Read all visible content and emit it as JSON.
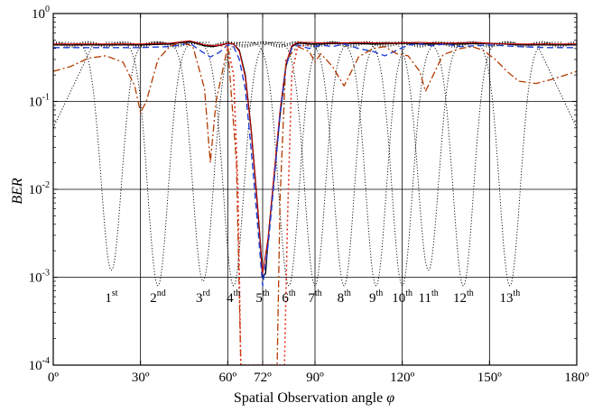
{
  "chart_data": {
    "type": "line",
    "title": "",
    "xlabel": "Spatial Observation angle",
    "xlabel_symbol": "φ",
    "ylabel": "BER",
    "x_unit": "degrees",
    "xlim": [
      0,
      180
    ],
    "ylim": [
      0.0001,
      1
    ],
    "y_scale": "log",
    "x_ticks": [
      {
        "value": 0,
        "label": "0º"
      },
      {
        "value": 30,
        "label": "30º"
      },
      {
        "value": 60,
        "label": "60º"
      },
      {
        "value": 72,
        "label": "72º"
      },
      {
        "value": 90,
        "label": "90º"
      },
      {
        "value": 120,
        "label": "120º"
      },
      {
        "value": 150,
        "label": "150º"
      },
      {
        "value": 180,
        "label": "180º"
      }
    ],
    "y_ticks": [
      {
        "value": 0.0001,
        "base": "10",
        "exp": "-4"
      },
      {
        "value": 0.001,
        "base": "10",
        "exp": "-3"
      },
      {
        "value": 0.01,
        "base": "10",
        "exp": "-2"
      },
      {
        "value": 0.1,
        "base": "10",
        "exp": "-1"
      },
      {
        "value": 1,
        "base": "10",
        "exp": "0"
      }
    ],
    "horizontal_grid": [
      0.001,
      0.01,
      0.1
    ],
    "vertical_grid": [
      30,
      60,
      72,
      90,
      120,
      150
    ],
    "grid": true,
    "legend": "none",
    "beam_labels": [
      {
        "num": "1",
        "sup": "st",
        "x": 20
      },
      {
        "num": "2",
        "sup": "nd",
        "x": 36
      },
      {
        "num": "3",
        "sup": "rd",
        "x": 51.5
      },
      {
        "num": "4",
        "sup": "th",
        "x": 62
      },
      {
        "num": "5",
        "sup": "th",
        "x": 72
      },
      {
        "num": "6",
        "sup": "th",
        "x": 81
      },
      {
        "num": "7",
        "sup": "th",
        "x": 90
      },
      {
        "num": "8",
        "sup": "th",
        "x": 100
      },
      {
        "num": "9",
        "sup": "th",
        "x": 111
      },
      {
        "num": "10",
        "sup": "th",
        "x": 120
      },
      {
        "num": "11",
        "sup": "th",
        "x": 129
      },
      {
        "num": "12",
        "sup": "th",
        "x": 141
      },
      {
        "num": "13",
        "sup": "th",
        "x": 157
      }
    ],
    "beam_curves": {
      "peaks": [
        0.45,
        0.46,
        0.48,
        0.47,
        0.48
      ],
      "centers": [
        20,
        36,
        51.5,
        62,
        81,
        90,
        100,
        111,
        120,
        129,
        141,
        157
      ],
      "min_values": [
        0.0012,
        0.0008,
        0.0009,
        0.0008,
        0.0008,
        0.0008,
        0.0008,
        0.0008,
        0.0008,
        0.0012,
        0.0008,
        0.0008
      ],
      "edge_curve_value_at_0": 0.05,
      "edge_curve_value_at_180": 0.05
    },
    "series": [
      {
        "color": "#000000",
        "style": "solid",
        "width": 1.4,
        "x": [
          0,
          10,
          20,
          30,
          40,
          47,
          52,
          55,
          58,
          60,
          62,
          64,
          66,
          68,
          70,
          71,
          72,
          73,
          74,
          76,
          78,
          80,
          82,
          84,
          86,
          88,
          92,
          100,
          110,
          120,
          130,
          140,
          150,
          160,
          170,
          180
        ],
        "y": [
          0.44,
          0.44,
          0.44,
          0.44,
          0.45,
          0.48,
          0.43,
          0.42,
          0.44,
          0.46,
          0.45,
          0.38,
          0.2,
          0.05,
          0.008,
          0.003,
          0.001,
          0.0011,
          0.003,
          0.015,
          0.07,
          0.25,
          0.42,
          0.46,
          0.46,
          0.45,
          0.45,
          0.46,
          0.45,
          0.46,
          0.45,
          0.45,
          0.46,
          0.44,
          0.44,
          0.44
        ]
      },
      {
        "color": "#cc0000",
        "style": "solid",
        "width": 1.0,
        "x": [
          0,
          10,
          20,
          30,
          40,
          47,
          52,
          56,
          60,
          62,
          64,
          66,
          68,
          70,
          72,
          74,
          76,
          78,
          80,
          82,
          84,
          88,
          95,
          105,
          115,
          125,
          135,
          145,
          155,
          165,
          180
        ],
        "y": [
          0.45,
          0.45,
          0.45,
          0.45,
          0.46,
          0.49,
          0.44,
          0.43,
          0.46,
          0.45,
          0.37,
          0.19,
          0.05,
          0.008,
          0.0011,
          0.003,
          0.016,
          0.08,
          0.27,
          0.43,
          0.47,
          0.47,
          0.46,
          0.47,
          0.46,
          0.47,
          0.46,
          0.47,
          0.45,
          0.45,
          0.45
        ]
      },
      {
        "color": "#1f3fd6",
        "style": "dashed",
        "width": 1.4,
        "x": [
          0,
          10,
          20,
          30,
          40,
          47,
          51,
          54,
          57,
          60,
          62,
          64,
          66,
          68,
          70,
          72,
          74,
          76,
          78,
          80,
          82,
          84,
          88,
          92,
          96,
          100,
          105,
          110,
          114,
          118,
          122,
          126,
          130,
          135,
          140,
          150,
          160,
          170,
          180
        ],
        "y": [
          0.41,
          0.41,
          0.41,
          0.41,
          0.42,
          0.46,
          0.37,
          0.32,
          0.36,
          0.44,
          0.42,
          0.3,
          0.14,
          0.03,
          0.005,
          0.0008,
          0.0025,
          0.013,
          0.07,
          0.25,
          0.4,
          0.44,
          0.4,
          0.44,
          0.42,
          0.45,
          0.4,
          0.37,
          0.33,
          0.38,
          0.44,
          0.45,
          0.43,
          0.45,
          0.42,
          0.44,
          0.42,
          0.41,
          0.41
        ]
      },
      {
        "color": "#b23a00",
        "style": "dashdot",
        "width": 1.3,
        "x": [
          0,
          6,
          12,
          18,
          24,
          28,
          30,
          32,
          36,
          40,
          44,
          48,
          52,
          54,
          56,
          60,
          63,
          64.5,
          66,
          68,
          70,
          72,
          74,
          76,
          77,
          78,
          80,
          84,
          88,
          90,
          92,
          96,
          100,
          105,
          110,
          114,
          118,
          122,
          126,
          128,
          130,
          134,
          140,
          144,
          148,
          152,
          156,
          160,
          166,
          172,
          180
        ],
        "y": [
          0.22,
          0.25,
          0.31,
          0.33,
          0.28,
          0.15,
          0.075,
          0.1,
          0.3,
          0.42,
          0.48,
          0.42,
          0.14,
          0.02,
          0.1,
          0.42,
          0.02,
          0.0001,
          0.0001,
          0.0001,
          0.0001,
          0.0001,
          0.0001,
          0.0001,
          0.0001,
          0.008,
          0.3,
          0.42,
          0.37,
          0.28,
          0.35,
          0.25,
          0.15,
          0.32,
          0.4,
          0.42,
          0.35,
          0.33,
          0.22,
          0.13,
          0.18,
          0.34,
          0.4,
          0.42,
          0.38,
          0.3,
          0.22,
          0.17,
          0.16,
          0.18,
          0.22
        ]
      },
      {
        "color": "#e03020",
        "style": "dotted",
        "width": 1.6,
        "x": [
          56,
          60,
          62,
          63.5,
          64.5,
          65.5,
          66.5,
          77.5,
          78.5,
          79.5,
          80.5,
          82,
          84,
          88
        ],
        "y": [
          0.44,
          0.42,
          0.2,
          0.01,
          0.0001,
          0.0001,
          0.0001,
          0.0001,
          0.0001,
          0.0001,
          0.004,
          0.2,
          0.42,
          0.44
        ]
      }
    ]
  }
}
